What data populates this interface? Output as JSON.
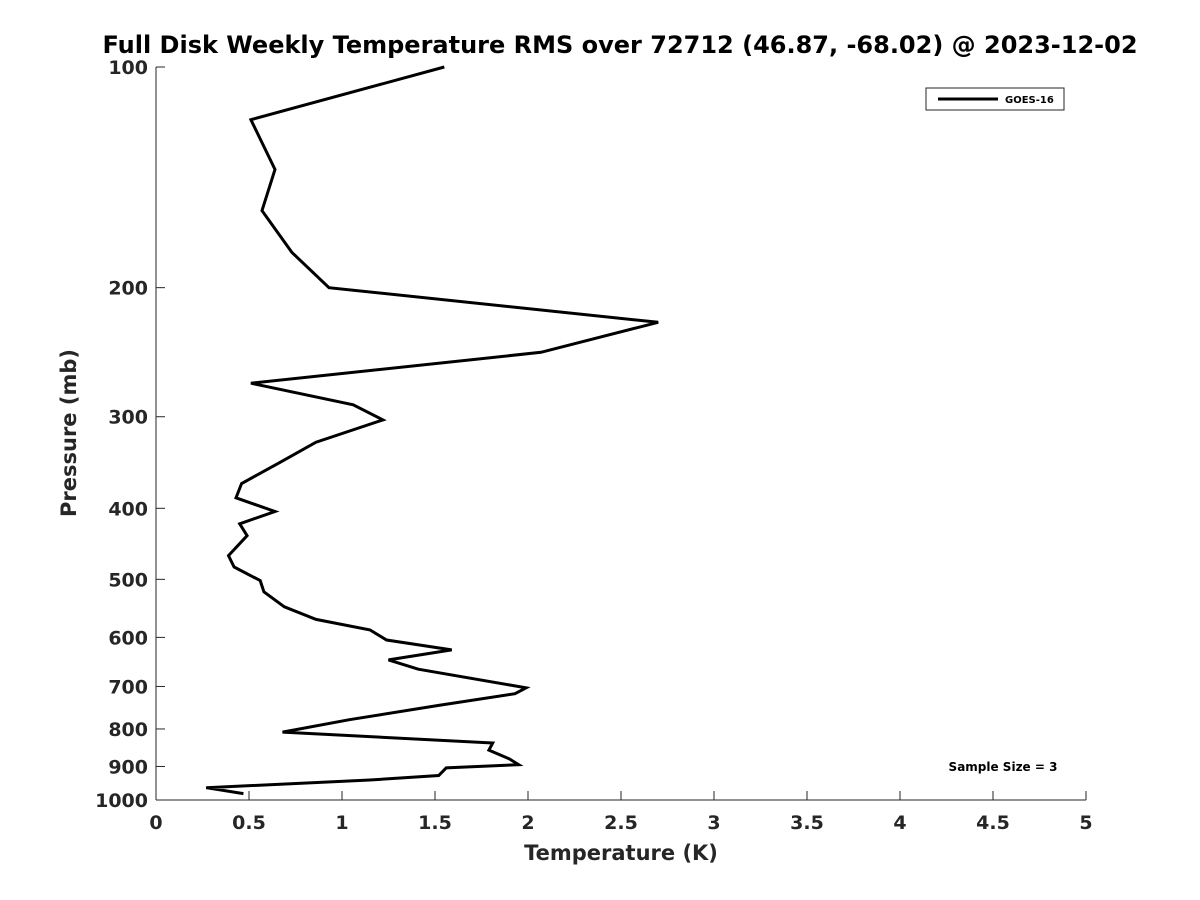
{
  "chart_data": {
    "type": "line",
    "title": "Full Disk Weekly Temperature RMS over 72712 (46.87, -68.02) @ 2023-12-02",
    "xlabel": "Temperature (K)",
    "ylabel": "Pressure (mb)",
    "xlim": [
      0,
      5
    ],
    "ylim": [
      100,
      1000
    ],
    "y_scale": "log",
    "y_reversed": true,
    "xticks": [
      0,
      0.5,
      1,
      1.5,
      2,
      2.5,
      3,
      3.5,
      4,
      4.5,
      5
    ],
    "xtick_labels": [
      "0",
      "0.5",
      "1",
      "1.5",
      "2",
      "2.5",
      "3",
      "3.5",
      "4",
      "4.5",
      "5"
    ],
    "yticks": [
      100,
      200,
      300,
      400,
      500,
      600,
      700,
      800,
      900,
      1000
    ],
    "ytick_labels": [
      "100",
      "200",
      "300",
      "400",
      "500",
      "600",
      "700",
      "800",
      "900",
      "1000"
    ],
    "grid": false,
    "legend_position": "top-right",
    "series": [
      {
        "name": "GOES-16",
        "color": "#000000",
        "x": [
          1.55,
          0.51,
          0.64,
          0.57,
          0.73,
          0.93,
          2.7,
          2.07,
          0.51,
          1.06,
          1.22,
          0.86,
          0.67,
          0.46,
          0.43,
          0.64,
          0.45,
          0.49,
          0.39,
          0.42,
          0.56,
          0.58,
          0.69,
          0.86,
          1.15,
          1.24,
          1.59,
          1.25,
          1.41,
          1.99,
          1.93,
          1.52,
          1.04,
          0.68,
          1.81,
          1.79,
          1.9,
          1.95,
          1.56,
          1.52,
          1.15,
          0.27,
          0.47
        ],
        "y": [
          100,
          118,
          138,
          157,
          179,
          200,
          223,
          245,
          270,
          289,
          303,
          325,
          346,
          370,
          387,
          404,
          420,
          436,
          464,
          481,
          502,
          520,
          545,
          567,
          586,
          605,
          624,
          644,
          663,
          703,
          716,
          743,
          777,
          808,
          836,
          855,
          879,
          895,
          904,
          926,
          939,
          962,
          980
        ]
      }
    ],
    "annotations": [
      "Sample Size = 3"
    ]
  }
}
